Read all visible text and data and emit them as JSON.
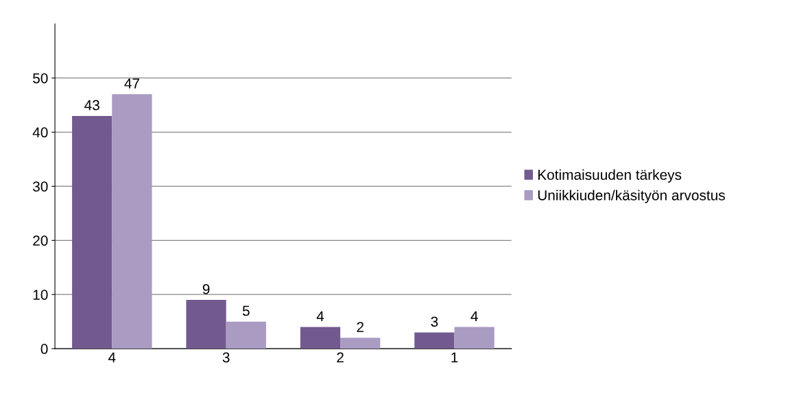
{
  "chart_data": {
    "type": "bar",
    "categories": [
      "4",
      "3",
      "2",
      "1"
    ],
    "series": [
      {
        "name": "Kotimaisuuden tärkeys",
        "color": "#725a8f",
        "values": [
          43,
          9,
          4,
          3
        ]
      },
      {
        "name": "Uniikkiuden/käsityön arvostus",
        "color": "#a99bc2",
        "values": [
          47,
          5,
          2,
          4
        ]
      }
    ],
    "ylim": [
      0,
      60
    ],
    "yticks": [
      0,
      10,
      20,
      30,
      40,
      50
    ],
    "grid": "y",
    "legend": "right",
    "data_labels": true
  }
}
